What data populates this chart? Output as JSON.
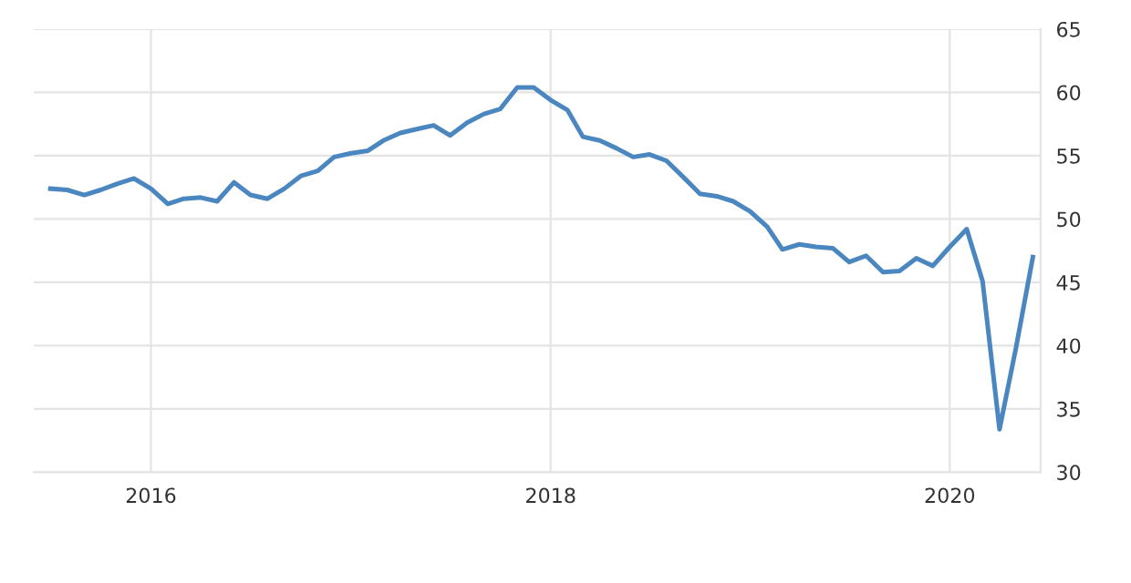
{
  "chart_data": {
    "type": "line",
    "x": [
      "2015-07",
      "2015-08",
      "2015-09",
      "2015-10",
      "2015-11",
      "2015-12",
      "2016-01",
      "2016-02",
      "2016-03",
      "2016-04",
      "2016-05",
      "2016-06",
      "2016-07",
      "2016-08",
      "2016-09",
      "2016-10",
      "2016-11",
      "2016-12",
      "2017-01",
      "2017-02",
      "2017-03",
      "2017-04",
      "2017-05",
      "2017-06",
      "2017-07",
      "2017-08",
      "2017-09",
      "2017-10",
      "2017-11",
      "2017-12",
      "2018-01",
      "2018-02",
      "2018-03",
      "2018-04",
      "2018-05",
      "2018-06",
      "2018-07",
      "2018-08",
      "2018-09",
      "2018-10",
      "2018-11",
      "2018-12",
      "2019-01",
      "2019-02",
      "2019-03",
      "2019-04",
      "2019-05",
      "2019-06",
      "2019-07",
      "2019-08",
      "2019-09",
      "2019-10",
      "2019-11",
      "2019-12",
      "2020-01",
      "2020-02",
      "2020-03",
      "2020-04",
      "2020-05",
      "2020-06"
    ],
    "series": [
      {
        "color": "#4a86c0",
        "values": [
          52.4,
          52.3,
          51.9,
          52.3,
          52.8,
          53.2,
          52.4,
          51.2,
          51.6,
          51.7,
          51.4,
          52.9,
          51.9,
          51.6,
          52.4,
          53.4,
          53.8,
          54.9,
          55.2,
          55.4,
          56.2,
          56.8,
          57.1,
          57.4,
          56.6,
          57.6,
          58.3,
          58.7,
          60.4,
          60.4,
          59.4,
          58.6,
          56.5,
          56.2,
          55.6,
          54.9,
          55.1,
          54.6,
          53.3,
          52.0,
          51.8,
          51.4,
          50.6,
          49.4,
          47.6,
          48.0,
          47.8,
          47.7,
          46.6,
          47.1,
          45.8,
          45.9,
          46.9,
          46.3,
          47.8,
          49.2,
          45.1,
          33.4,
          39.8,
          47.0
        ]
      }
    ],
    "xlim": [
      "2015-06",
      "2020-06-15"
    ],
    "xticks": [
      {
        "value": "2016-01",
        "label": "2016"
      },
      {
        "value": "2018-01",
        "label": "2018"
      },
      {
        "value": "2020-01",
        "label": "2020"
      }
    ],
    "ylim": [
      30,
      65
    ],
    "yticks": [
      30,
      35,
      40,
      45,
      50,
      55,
      60,
      65
    ],
    "grid": true,
    "legend": false,
    "marker": "none",
    "line_style": "solid"
  }
}
